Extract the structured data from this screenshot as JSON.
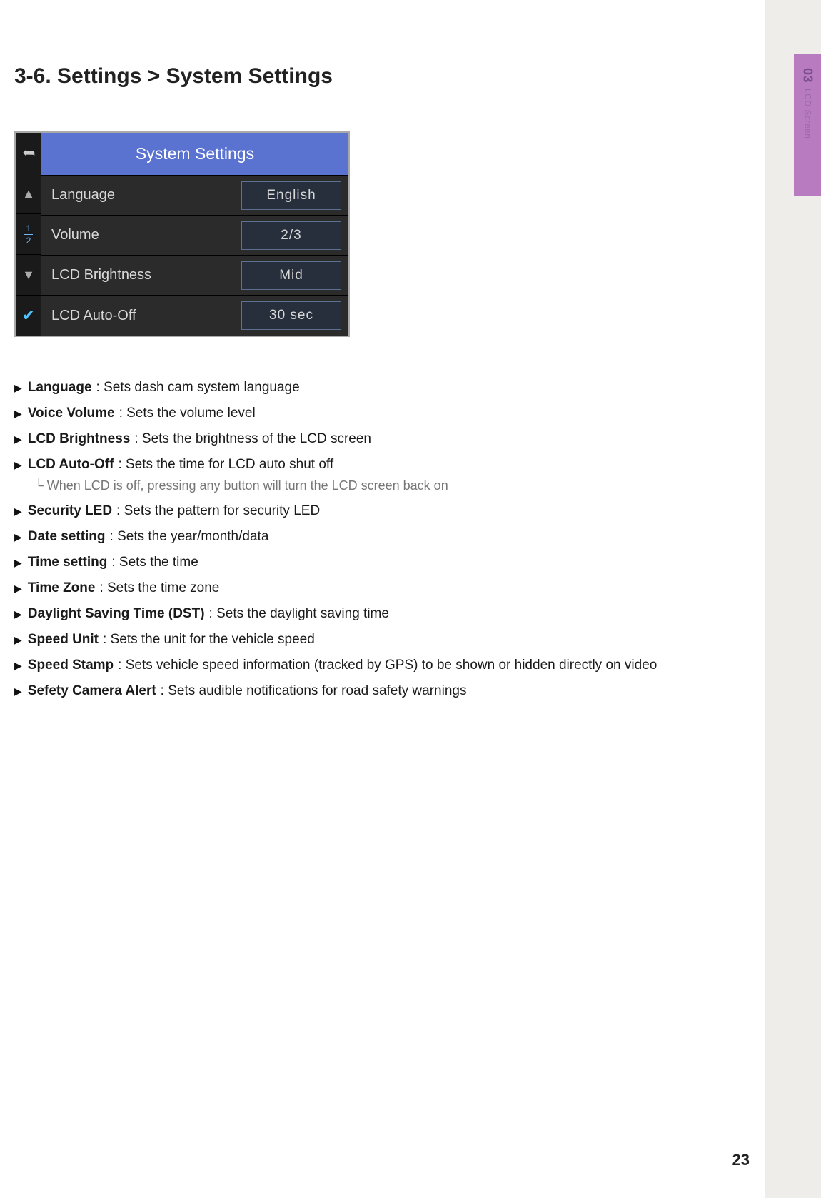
{
  "sideTab": {
    "num": "03",
    "label": "LCD Screen"
  },
  "title": "3-6. Settings > System Settings",
  "screenshot": {
    "header": "System Settings",
    "rows": [
      {
        "label": "Language",
        "value": "English"
      },
      {
        "label": "Volume",
        "value": "2/3"
      },
      {
        "label": "LCD Brightness",
        "value": "Mid"
      },
      {
        "label": "LCD Auto-Off",
        "value": "30 sec"
      }
    ],
    "sideControls": {
      "pageNumTop": "1",
      "pageNumBottom": "2"
    },
    "colors": {
      "headerBg": "#5a72d0",
      "rowBg": "#2b2b2b",
      "valueBorder": "#5c7090",
      "valueBg": "#262f3b",
      "scrollBg": "#1a1a1a",
      "frameBorder": "#a9a9a9"
    }
  },
  "bullets": [
    {
      "label": "Language",
      "desc": ": Sets dash cam system language"
    },
    {
      "label": "Voice Volume",
      "desc": ": Sets the volume level"
    },
    {
      "label": "LCD Brightness",
      "desc": ": Sets the brightness of the LCD screen"
    },
    {
      "label": "LCD Auto-Off",
      "desc": ": Sets the time for LCD auto shut off",
      "sub": "└ When LCD is off, pressing any button will turn the LCD screen back on"
    },
    {
      "label": "Security LED",
      "desc": ": Sets the pattern for security LED"
    },
    {
      "label": "Date setting",
      "desc": ": Sets the year/month/data"
    },
    {
      "label": "Time setting",
      "desc": ": Sets the time"
    },
    {
      "label": "Time Zone",
      "desc": ": Sets the time zone"
    },
    {
      "label": "Daylight Saving Time (DST)",
      "desc": ": Sets the daylight saving time"
    },
    {
      "label": "Speed Unit",
      "desc": ": Sets the unit for the vehicle speed"
    },
    {
      "label": "Speed Stamp",
      "desc": ": Sets vehicle speed information (tracked by GPS) to be shown or hidden directly on video"
    },
    {
      "label": "Sefety Camera Alert",
      "desc": ": Sets audible notifications for road safety warnings"
    }
  ],
  "pageNumber": "23"
}
